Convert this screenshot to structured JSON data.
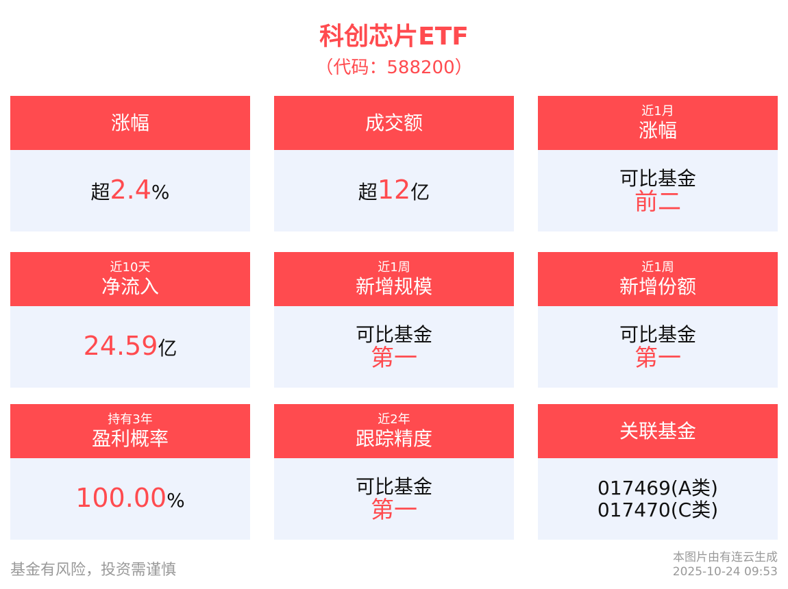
{
  "title": "科创芯片ETF",
  "code": "（代码：588200）",
  "cards": [
    {
      "sub": "",
      "label": "涨幅",
      "prefix": "超",
      "value": "2.4",
      "suffix": "%"
    },
    {
      "sub": "",
      "label": "成交额",
      "prefix": "超",
      "value": "12",
      "suffix": "亿"
    },
    {
      "sub": "近1月",
      "label": "涨幅",
      "line1": "可比基金",
      "rank": "前二"
    },
    {
      "sub": "近10天",
      "label": "净流入",
      "prefix": "",
      "value": "24.59",
      "suffix": "亿"
    },
    {
      "sub": "近1周",
      "label": "新增规模",
      "line1": "可比基金",
      "rank": "第一"
    },
    {
      "sub": "近1周",
      "label": "新增份额",
      "line1": "可比基金",
      "rank": "第一"
    },
    {
      "sub": "持有3年",
      "label": "盈利概率",
      "prefix": "",
      "value": "100.00",
      "suffix": "%"
    },
    {
      "sub": "近2年",
      "label": "跟踪精度",
      "line1": "可比基金",
      "rank": "第一"
    },
    {
      "sub": "",
      "label": "关联基金",
      "funds": [
        "017469(A类)",
        "017470(C类)"
      ]
    }
  ],
  "footer": {
    "risk": "基金有风险，投资需谨慎",
    "generated": "本图片由有连云生成",
    "timestamp": "2025-10-24 09:53"
  },
  "colors": {
    "accent": "#FF4B4F",
    "card_bg": "#EEF3FD"
  }
}
